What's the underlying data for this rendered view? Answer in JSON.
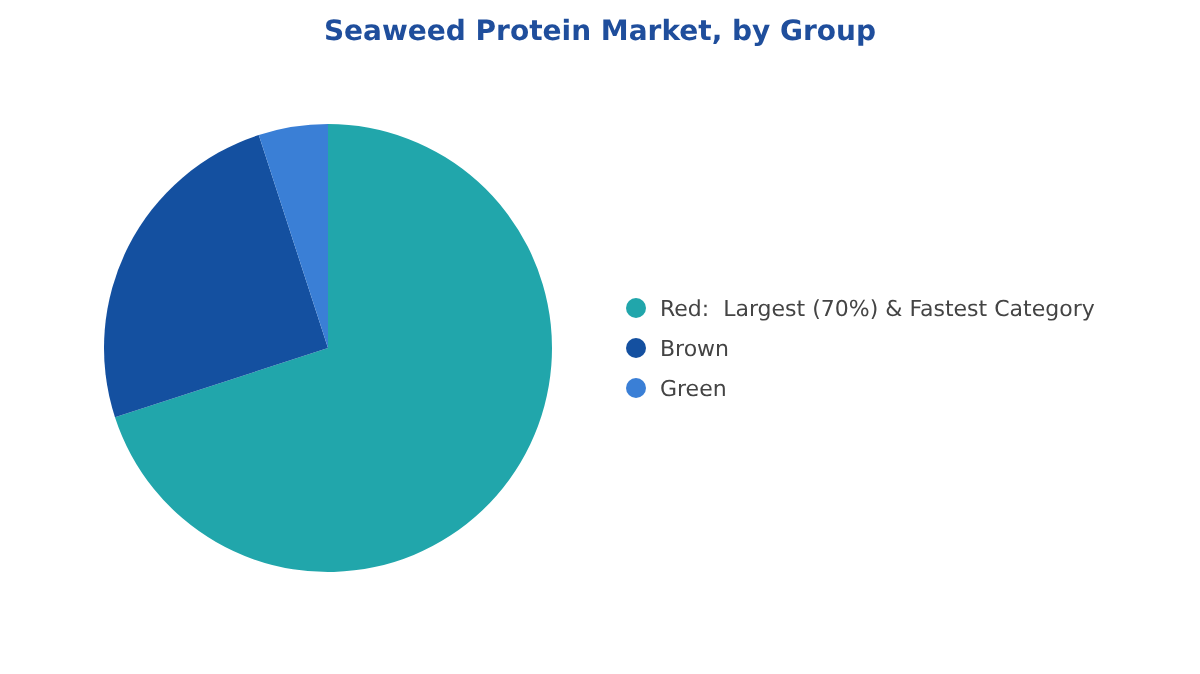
{
  "chart_data": {
    "type": "pie",
    "title": "Seaweed Protein Market, by Group",
    "categories": [
      "Red:  Largest (70%) & Fastest Category",
      "Brown",
      "Green"
    ],
    "values": [
      70,
      25,
      5
    ],
    "colors": [
      "#21a6ab",
      "#1450a0",
      "#3a7fd6"
    ],
    "legend": "right"
  }
}
